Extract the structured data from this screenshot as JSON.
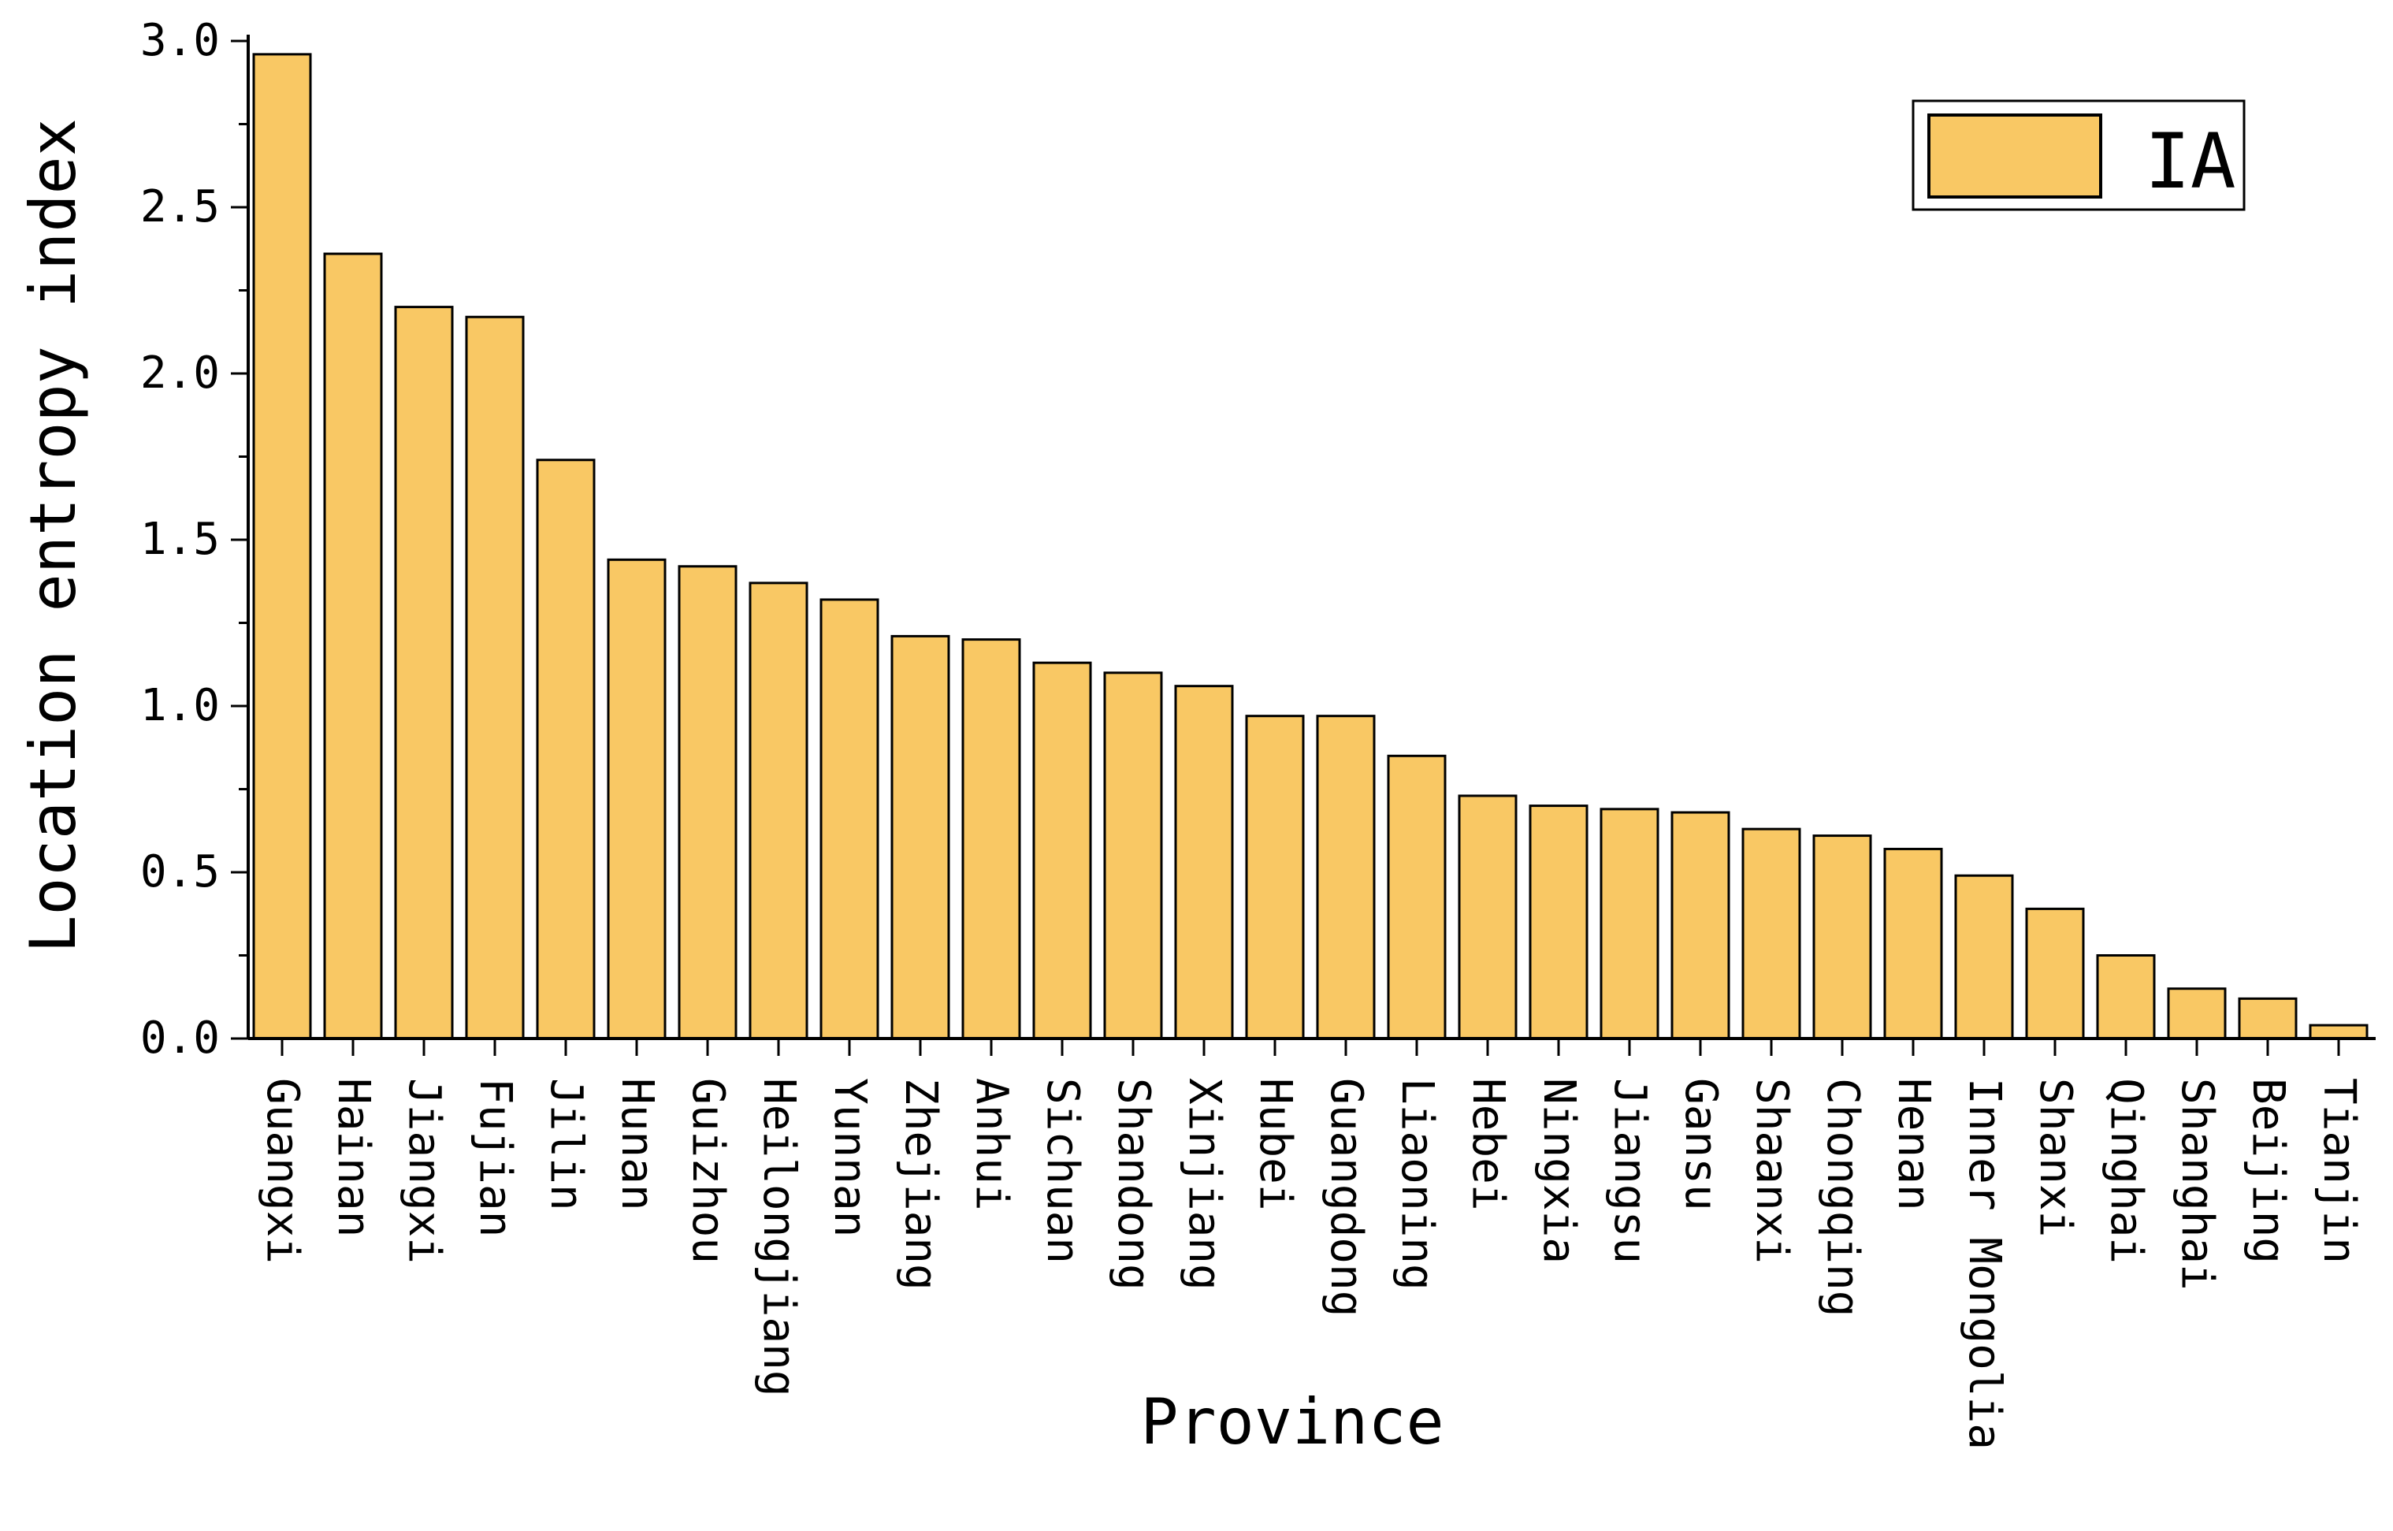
{
  "colors": {
    "bar_fill": "#F9C864",
    "bar_stroke": "#000000",
    "axis": "#000000",
    "background": "#FFFFFF"
  },
  "chart_data": {
    "type": "bar",
    "title": "",
    "xlabel": "Province",
    "ylabel": "Location entropy index",
    "ylim": [
      0,
      3.0
    ],
    "yticks": [
      "0.0",
      "0.5",
      "1.0",
      "1.5",
      "2.0",
      "2.5",
      "3.0"
    ],
    "grid": false,
    "legend_position": "top-right",
    "categories": [
      "Guangxi",
      "Hainan",
      "Jiangxi",
      "Fujian",
      "Jilin",
      "Hunan",
      "Guizhou",
      "Heilongjiang",
      "Yunnan",
      "Zhejiang",
      "Anhui",
      "Sichuan",
      "Shandong",
      "Xinjiang",
      "Hubei",
      "Guangdong",
      "Liaoning",
      "Hebei",
      "Ningxia",
      "Jiangsu",
      "Gansu",
      "Shaanxi",
      "Chongqing",
      "Henan",
      "Inner Mongolia",
      "Shanxi",
      "Qinghai",
      "Shanghai",
      "Beijing",
      "Tianjin"
    ],
    "series": [
      {
        "name": "IA",
        "values": [
          2.96,
          2.36,
          2.2,
          2.17,
          1.74,
          1.44,
          1.42,
          1.37,
          1.32,
          1.21,
          1.2,
          1.13,
          1.1,
          1.06,
          0.97,
          0.97,
          0.85,
          0.73,
          0.7,
          0.69,
          0.68,
          0.63,
          0.61,
          0.57,
          0.49,
          0.39,
          0.25,
          0.15,
          0.12,
          0.04
        ]
      }
    ]
  }
}
